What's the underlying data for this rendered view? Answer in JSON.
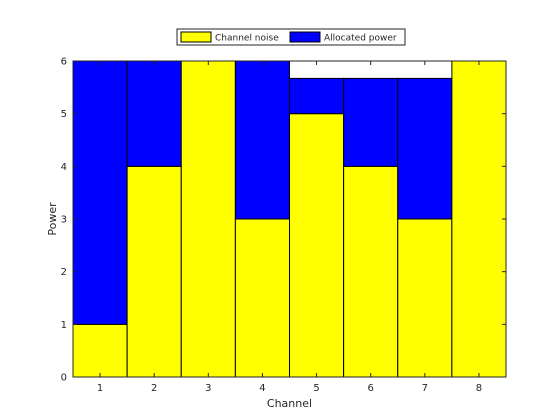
{
  "chart_data": {
    "type": "bar",
    "stacked": true,
    "categories": [
      "1",
      "2",
      "3",
      "4",
      "5",
      "6",
      "7",
      "8"
    ],
    "series": [
      {
        "name": "Channel noise",
        "color": "#ffff00",
        "values": [
          1,
          4,
          6,
          3,
          5,
          4,
          3,
          6
        ]
      },
      {
        "name": "Allocated power",
        "color": "#0000ff",
        "values": [
          5,
          2,
          0,
          3,
          0.67,
          1.67,
          2.67,
          0
        ]
      }
    ],
    "xlabel": "Channel",
    "ylabel": "Power",
    "ylim": [
      0,
      6
    ],
    "yticks": [
      "0",
      "1",
      "2",
      "3",
      "4",
      "5",
      "6"
    ],
    "grid": false,
    "legend_position": "top, outside plot"
  }
}
